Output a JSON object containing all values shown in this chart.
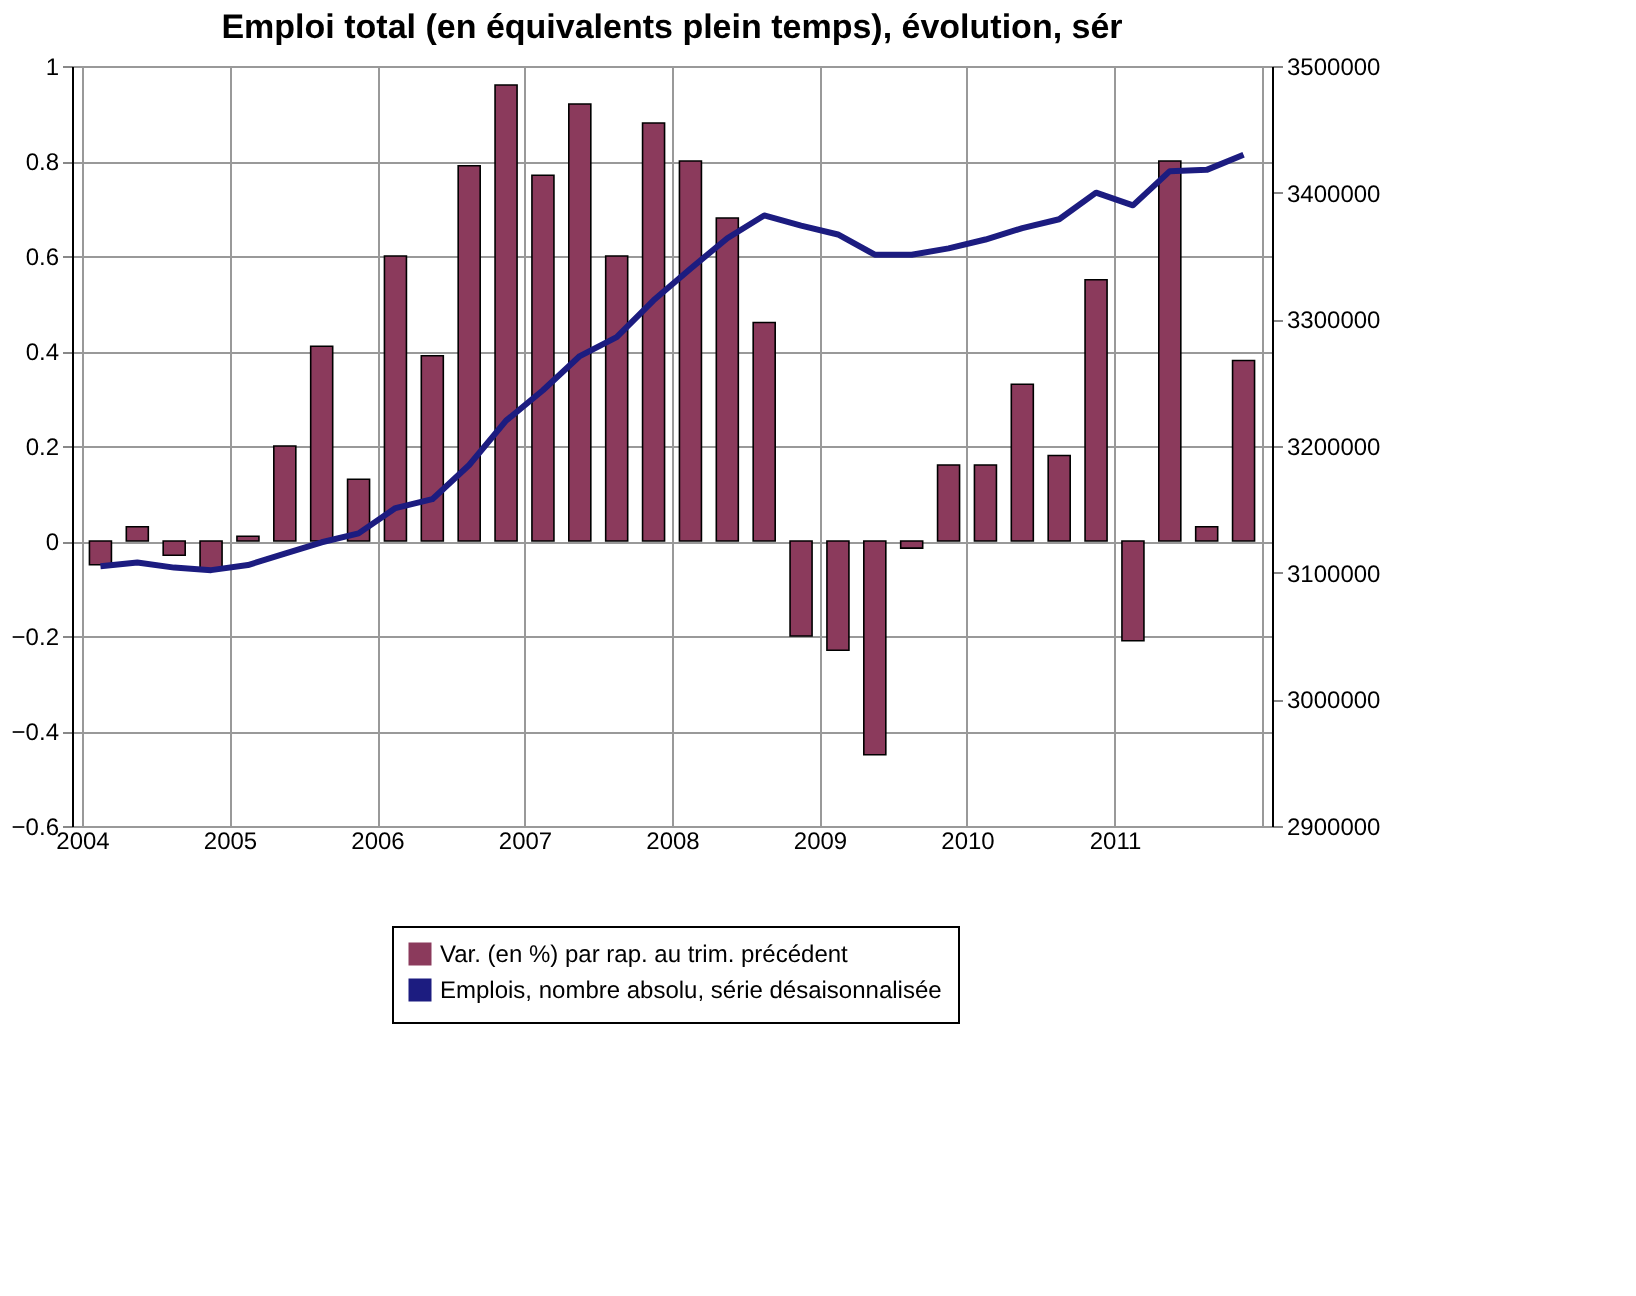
{
  "chart_data": {
    "type": "bar",
    "title": "Emploi total (en équivalents plein temps), évolution, sér",
    "x": [
      2004.125,
      2004.375,
      2004.625,
      2004.875,
      2005.125,
      2005.375,
      2005.625,
      2005.875,
      2006.125,
      2006.375,
      2006.625,
      2006.875,
      2007.125,
      2007.375,
      2007.625,
      2007.875,
      2008.125,
      2008.375,
      2008.625,
      2008.875,
      2009.125,
      2009.375,
      2009.625,
      2009.875,
      2010.125,
      2010.375,
      2010.625,
      2010.875,
      2011.125,
      2011.375,
      2011.625,
      2011.875
    ],
    "series": [
      {
        "name": "Var. (en %) par rap. au trim. précédent",
        "color": "#8b3a5c",
        "values": [
          -0.05,
          0.03,
          -0.03,
          -0.06,
          0.01,
          0.2,
          0.41,
          0.13,
          0.6,
          0.39,
          0.79,
          0.96,
          0.77,
          0.92,
          0.6,
          0.88,
          0.8,
          0.68,
          0.46,
          -0.2,
          -0.23,
          -0.45,
          -0.015,
          0.16,
          0.16,
          0.33,
          0.18,
          0.55,
          -0.21,
          0.8,
          0.03,
          0.38
        ]
      },
      {
        "name": "Emplois, nombre absolu, série désaisonnalisée",
        "type": "line",
        "axis": "y2",
        "color": "#1c1c80",
        "values": [
          3105000,
          3108000,
          3104000,
          3102000,
          3106000,
          3115000,
          3124000,
          3131000,
          3151000,
          3158000,
          3185000,
          3220000,
          3244000,
          3271000,
          3286000,
          3315000,
          3340000,
          3364000,
          3382000,
          3374000,
          3367000,
          3351000,
          3351000,
          3356000,
          3363000,
          3372000,
          3379000,
          3400000,
          3390000,
          3417000,
          3418000,
          3430000
        ]
      }
    ],
    "xlim": [
      2004,
      2012
    ],
    "xticks": [
      2004,
      2005,
      2006,
      2007,
      2008,
      2009,
      2010,
      2011,
      {
        "value": 2012,
        "label": null
      }
    ],
    "ylim": [
      -0.6,
      1
    ],
    "yticks": [
      -0.6,
      -0.4,
      -0.2,
      0,
      0.2,
      0.4,
      0.6,
      0.8,
      1
    ],
    "y2lim": [
      2900000,
      3500000
    ],
    "y2ticks": [
      2900000,
      3000000,
      3100000,
      3200000,
      3300000,
      3400000,
      3500000
    ],
    "grid": true,
    "legend": "bottom"
  }
}
